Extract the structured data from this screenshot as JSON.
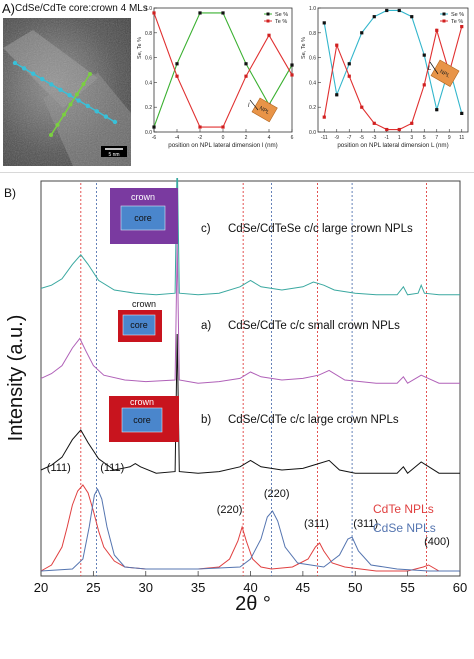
{
  "panel_a": {
    "label": "A)",
    "title": "CdSe/CdTe core:crown 4 MLs",
    "scale_bar": "5 nm",
    "line_marker": "l",
    "line_marker_b": "L",
    "inset_text": "NPL",
    "colors": {
      "se": "#3ab030",
      "te": "#e03030",
      "line_small": "#3ab030",
      "line_large": "#33b6cc",
      "tem_dot_cyan": "#39c0d8",
      "tem_dot_green": "#7ad040"
    }
  },
  "chart_data": [
    {
      "type": "line",
      "id": "profile-small",
      "ylabel": "Se, Te %",
      "xlabel": "position on NPL lateral dimension l (nm)",
      "xlim": [
        -6,
        6
      ],
      "ylim": [
        0,
        1
      ],
      "xticks": [
        -6,
        -4,
        -2,
        0,
        2,
        4,
        6
      ],
      "yticks": [
        0,
        0.2,
        0.4,
        0.6,
        0.8,
        1.0
      ],
      "series": [
        {
          "name": "Se %",
          "color": "#3ab030",
          "x": [
            -6,
            -4,
            -2,
            0,
            2,
            4,
            6
          ],
          "y": [
            0.04,
            0.55,
            0.96,
            0.96,
            0.55,
            0.22,
            0.54
          ]
        },
        {
          "name": "Te %",
          "color": "#e03030",
          "x": [
            -6,
            -4,
            -2,
            0,
            2,
            4,
            6
          ],
          "y": [
            0.96,
            0.45,
            0.04,
            0.04,
            0.45,
            0.78,
            0.46
          ]
        }
      ],
      "legend": "top-right",
      "grid": false
    },
    {
      "type": "line",
      "id": "profile-large",
      "ylabel": "Se, Te %",
      "xlabel": "position on NPL lateral dimension L (nm)",
      "xlim": [
        -12,
        12
      ],
      "ylim": [
        0,
        1
      ],
      "xticks": [
        -11,
        -9,
        -7,
        -5,
        -3,
        -1,
        1,
        3,
        5,
        7,
        9,
        11
      ],
      "yticks": [
        0,
        0.2,
        0.4,
        0.6,
        0.8,
        1.0
      ],
      "series": [
        {
          "name": "Se %",
          "color": "#33b6cc",
          "x": [
            -11,
            -9,
            -7,
            -5,
            -3,
            -1,
            1,
            3,
            5,
            7,
            9,
            11
          ],
          "y": [
            0.88,
            0.3,
            0.55,
            0.8,
            0.93,
            0.98,
            0.98,
            0.93,
            0.62,
            0.18,
            0.52,
            0.15
          ]
        },
        {
          "name": "Te %",
          "color": "#e03030",
          "x": [
            -11,
            -9,
            -7,
            -5,
            -3,
            -1,
            1,
            3,
            5,
            7,
            9,
            11
          ],
          "y": [
            0.12,
            0.7,
            0.45,
            0.2,
            0.07,
            0.02,
            0.02,
            0.07,
            0.38,
            0.82,
            0.48,
            0.85
          ]
        }
      ],
      "legend": "top-right",
      "grid": false
    },
    {
      "type": "line",
      "id": "xrd",
      "xlabel": "2θ °",
      "ylabel": "Intensity (a.u.)",
      "xlim": [
        20,
        60
      ],
      "xticks": [
        20,
        25,
        30,
        35,
        40,
        45,
        50,
        55,
        60
      ],
      "series": [
        {
          "name": "c) CdSe/CdTeSe c/c large crown NPLs",
          "color": "#3aa8a0",
          "x": [
            20,
            21,
            22,
            23,
            23.8,
            24.5,
            25.5,
            27,
            29,
            31,
            32.8,
            33,
            33.2,
            35,
            37,
            39,
            40,
            41,
            43,
            45,
            46,
            47,
            48,
            50,
            52,
            54,
            54.6,
            55,
            56,
            56.3,
            56.6,
            58,
            60
          ],
          "y": [
            0.06,
            0.08,
            0.12,
            0.21,
            0.27,
            0.21,
            0.11,
            0.05,
            0.03,
            0.02,
            0.03,
            0.9,
            0.03,
            0.02,
            0.03,
            0.07,
            0.11,
            0.07,
            0.05,
            0.07,
            0.1,
            0.08,
            0.05,
            0.03,
            0.02,
            0.02,
            0.07,
            0.02,
            0.03,
            0.08,
            0.03,
            0.02,
            0.02
          ]
        },
        {
          "name": "a) CdSe/CdTe c/c small crown NPLs",
          "color": "#b061b8",
          "x": [
            20,
            21,
            22,
            23,
            23.7,
            24.3,
            25,
            26,
            28,
            30,
            32.8,
            33,
            33.2,
            35,
            37,
            39,
            40,
            41,
            43,
            45,
            46.5,
            47.5,
            49,
            52,
            54,
            54.6,
            55,
            56.3,
            58,
            60
          ],
          "y": [
            0.06,
            0.09,
            0.14,
            0.25,
            0.31,
            0.23,
            0.14,
            0.08,
            0.05,
            0.04,
            0.05,
            0.9,
            0.05,
            0.03,
            0.04,
            0.06,
            0.1,
            0.07,
            0.05,
            0.06,
            0.08,
            0.11,
            0.05,
            0.03,
            0.03,
            0.07,
            0.03,
            0.08,
            0.03,
            0.03
          ]
        },
        {
          "name": "b) CdSe/CdTe c/c large crown NPLs",
          "color": "#111111",
          "x": [
            20,
            21,
            22,
            23,
            23.8,
            24.5,
            25.5,
            27,
            28.5,
            29,
            29.5,
            31,
            32.8,
            33,
            33.2,
            35,
            37,
            39,
            40,
            41,
            43,
            45,
            46.5,
            47.5,
            48.5,
            50,
            52,
            54,
            54.6,
            55,
            56.3,
            58,
            60
          ],
          "y": [
            0.05,
            0.08,
            0.13,
            0.24,
            0.3,
            0.22,
            0.12,
            0.05,
            0.07,
            0.09,
            0.07,
            0.03,
            0.04,
            0.9,
            0.04,
            0.03,
            0.04,
            0.07,
            0.11,
            0.07,
            0.05,
            0.06,
            0.09,
            0.11,
            0.05,
            0.03,
            0.03,
            0.03,
            0.07,
            0.03,
            0.1,
            0.03,
            0.03
          ]
        },
        {
          "name": "CdTe NPLs",
          "color": "#e04040",
          "x": [
            20,
            21,
            22,
            22.5,
            23,
            23.5,
            24,
            24.5,
            25,
            25.5,
            26,
            27,
            28,
            30,
            35,
            37,
            38,
            38.8,
            39.2,
            39.6,
            40.2,
            41,
            42,
            44,
            45.5,
            46.2,
            46.6,
            47,
            47.8,
            49,
            52,
            55,
            56.5,
            57,
            58,
            60
          ],
          "y": [
            0.0,
            0.03,
            0.12,
            0.22,
            0.33,
            0.4,
            0.43,
            0.39,
            0.3,
            0.2,
            0.12,
            0.05,
            0.02,
            0.01,
            0.01,
            0.02,
            0.06,
            0.15,
            0.22,
            0.15,
            0.06,
            0.02,
            0.01,
            0.02,
            0.06,
            0.12,
            0.14,
            0.1,
            0.04,
            0.02,
            0.0,
            0.0,
            0.02,
            0.03,
            0.0,
            0.0
          ]
        },
        {
          "name": "CdSe NPLs",
          "color": "#5575b0",
          "x": [
            20,
            23,
            24,
            24.6,
            25.1,
            25.4,
            25.8,
            26.3,
            27,
            28,
            30,
            35,
            39,
            40,
            41,
            41.6,
            42.1,
            42.6,
            43.3,
            44.5,
            47,
            48.5,
            49.3,
            49.7,
            50.3,
            51.5,
            54,
            57,
            60
          ],
          "y": [
            0.0,
            0.01,
            0.06,
            0.22,
            0.38,
            0.41,
            0.36,
            0.22,
            0.08,
            0.02,
            0.01,
            0.01,
            0.02,
            0.06,
            0.16,
            0.27,
            0.3,
            0.25,
            0.12,
            0.04,
            0.02,
            0.08,
            0.16,
            0.17,
            0.1,
            0.03,
            0.01,
            0.0,
            0.0
          ]
        }
      ],
      "reference_lines": [
        {
          "x": 23.8,
          "color": "#e04040"
        },
        {
          "x": 39.3,
          "color": "#e04040"
        },
        {
          "x": 46.4,
          "color": "#e04040"
        },
        {
          "x": 56.8,
          "color": "#e04040"
        },
        {
          "x": 25.3,
          "color": "#5575b0"
        },
        {
          "x": 42.0,
          "color": "#5575b0"
        },
        {
          "x": 49.7,
          "color": "#5575b0"
        }
      ],
      "peak_labels": [
        {
          "text": "(111)",
          "x": 21.7,
          "level": 0.5
        },
        {
          "text": "(111)",
          "x": 26.8,
          "level": 0.5
        },
        {
          "text": "(220)",
          "x": 38.0,
          "level": 0.29
        },
        {
          "text": "(220)",
          "x": 42.5,
          "level": 0.37
        },
        {
          "text": "(311)",
          "x": 46.3,
          "level": 0.22
        },
        {
          "text": "(311)",
          "x": 51.0,
          "level": 0.22
        },
        {
          "text": "(400)",
          "x": 57.8,
          "level": 0.13
        }
      ],
      "legend": "bottom-right",
      "grid": false
    }
  ],
  "panel_b": {
    "label": "B)",
    "ylabel": "Intensity (a.u.)",
    "xlabel": "2θ °",
    "schematic_labels": {
      "crown": "crown",
      "core": "core"
    },
    "sample_labels": [
      {
        "prefix": "c)",
        "text": "CdSe/CdTeSe c/c large crown NPLs"
      },
      {
        "prefix": "a)",
        "text": "CdSe/CdTe c/c small crown NPLs"
      },
      {
        "prefix": "b)",
        "text": "CdSe/CdTe c/c large crown NPLs"
      }
    ],
    "legend": [
      {
        "text": "CdTe NPLs",
        "color": "#e04040"
      },
      {
        "text": "CdSe NPLs",
        "color": "#5575b0"
      }
    ],
    "colors": {
      "crown_c": "#7a3aa0",
      "crown_ab": "#c8141e",
      "core": "#4a86cc"
    }
  }
}
